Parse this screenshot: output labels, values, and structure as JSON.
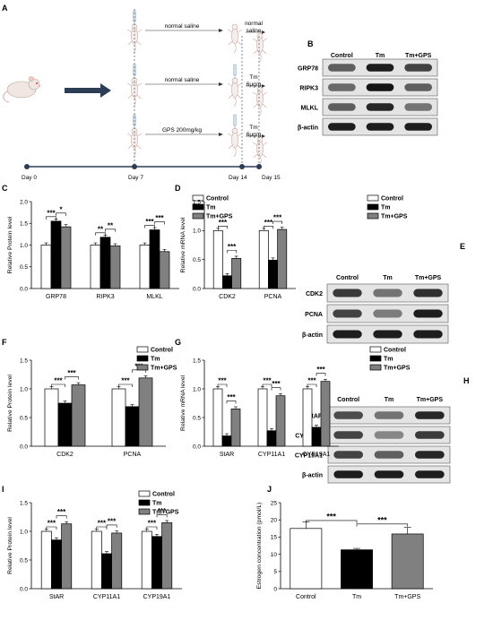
{
  "panel_a": {
    "letter": "A",
    "arrow_labels": [
      "normal saline",
      "normal saline",
      "GPS 200mg/kg"
    ],
    "end_labels": [
      "normal\nsaline",
      "Tm\n6μg/g",
      "Tm\n6μg/g"
    ],
    "timeline": [
      "Day 0",
      "Day 7",
      "Day 14",
      "Day 15"
    ]
  },
  "blots": [
    {
      "letter": "B",
      "header": [
        "Control",
        "Tm",
        "Tm+GPS"
      ],
      "rows": [
        "GRP78",
        "RIPK3",
        "MLKL",
        "β-actin"
      ]
    },
    {
      "letter": "E",
      "header": [
        "Control",
        "Tm",
        "Tm+GPS"
      ],
      "rows": [
        "CDK2",
        "PCNA",
        "β-actin"
      ]
    },
    {
      "letter": "H",
      "header": [
        "Control",
        "Tm",
        "Tm+GPS"
      ],
      "rows": [
        "StAR",
        "CYP11A1",
        "CYP19A1",
        "β-actin"
      ]
    }
  ],
  "legend": [
    "Control",
    "Tm",
    "Tm+GPS"
  ],
  "colors": {
    "control": "#ffffff",
    "tm": "#000000",
    "tmgps": "#808080",
    "stroke": "#000000"
  },
  "chart_data": [
    {
      "letter": "C",
      "type": "bar",
      "ylabel": "Relative Protein level",
      "ylim": [
        0,
        2.0
      ],
      "yticks": [
        "0.0",
        "0.5",
        "1.0",
        "1.5",
        "2.0"
      ],
      "categories": [
        "GRP78",
        "RIPK3",
        "MLKL"
      ],
      "series": [
        {
          "name": "Control",
          "values": [
            1.0,
            1.0,
            1.0
          ]
        },
        {
          "name": "Tm",
          "values": [
            1.55,
            1.18,
            1.35
          ]
        },
        {
          "name": "Tm+GPS",
          "values": [
            1.42,
            0.98,
            0.85
          ]
        }
      ],
      "sig": [
        [
          "***",
          "*"
        ],
        [
          "**",
          "**"
        ],
        [
          "***",
          "***"
        ]
      ]
    },
    {
      "letter": "D",
      "type": "bar",
      "ylabel": "Relative mRNA level",
      "ylim": [
        0,
        1.5
      ],
      "yticks": [
        "0.0",
        "0.5",
        "1.0",
        "1.5"
      ],
      "categories": [
        "CDK2",
        "PCNA"
      ],
      "series": [
        {
          "name": "Control",
          "values": [
            1.0,
            1.0
          ]
        },
        {
          "name": "Tm",
          "values": [
            0.22,
            0.49
          ]
        },
        {
          "name": "Tm+GPS",
          "values": [
            0.52,
            1.02
          ]
        }
      ],
      "sig": [
        [
          "***",
          "***"
        ],
        [
          "***",
          "***"
        ]
      ]
    },
    {
      "letter": "F",
      "type": "bar",
      "ylabel": "Relative Protein level",
      "ylim": [
        0,
        1.5
      ],
      "yticks": [
        "0.0",
        "0.5",
        "1.0",
        "1.5"
      ],
      "categories": [
        "CDK2",
        "PCNA"
      ],
      "series": [
        {
          "name": "Control",
          "values": [
            1.0,
            1.0
          ]
        },
        {
          "name": "Tm",
          "values": [
            0.75,
            0.69
          ]
        },
        {
          "name": "Tm+GPS",
          "values": [
            1.07,
            1.19
          ]
        }
      ],
      "sig": [
        [
          "***",
          "***"
        ],
        [
          "***",
          "***"
        ]
      ]
    },
    {
      "letter": "G",
      "type": "bar",
      "ylabel": "Relative mRNA level",
      "ylim": [
        0,
        1.5
      ],
      "yticks": [
        "0.0",
        "0.5",
        "1.0",
        "1.5"
      ],
      "categories": [
        "StAR",
        "CYP11A1",
        "CYP19A1"
      ],
      "series": [
        {
          "name": "Control",
          "values": [
            1.0,
            1.0,
            1.0
          ]
        },
        {
          "name": "Tm",
          "values": [
            0.18,
            0.27,
            0.33
          ]
        },
        {
          "name": "Tm+GPS",
          "values": [
            0.65,
            0.88,
            1.13
          ]
        }
      ],
      "sig": [
        [
          "***",
          "***"
        ],
        [
          "***",
          "***"
        ],
        [
          "***",
          "***"
        ]
      ]
    },
    {
      "letter": "I",
      "type": "bar",
      "ylabel": "Relative Protein level",
      "ylim": [
        0,
        1.5
      ],
      "yticks": [
        "0.0",
        "0.5",
        "1.0",
        "1.5"
      ],
      "categories": [
        "StAR",
        "CYP11A1",
        "CYP19A1"
      ],
      "series": [
        {
          "name": "Control",
          "values": [
            1.0,
            1.0,
            1.0
          ]
        },
        {
          "name": "Tm",
          "values": [
            0.85,
            0.61,
            0.91
          ]
        },
        {
          "name": "Tm+GPS",
          "values": [
            1.13,
            0.97,
            1.15
          ]
        }
      ],
      "sig": [
        [
          "***",
          "***"
        ],
        [
          "***",
          "***"
        ],
        [
          "***",
          "***"
        ]
      ]
    },
    {
      "letter": "J",
      "type": "bar",
      "ylabel": "Estrogen concentration (pmol/L)",
      "ylim": [
        0,
        25
      ],
      "yticks": [
        "0",
        "5",
        "10",
        "15",
        "20",
        "25"
      ],
      "categories": [
        "Control",
        "Tm",
        "Tm+GPS"
      ],
      "values": [
        17.5,
        11.3,
        15.9
      ],
      "sig": [
        "***",
        "***"
      ]
    }
  ]
}
